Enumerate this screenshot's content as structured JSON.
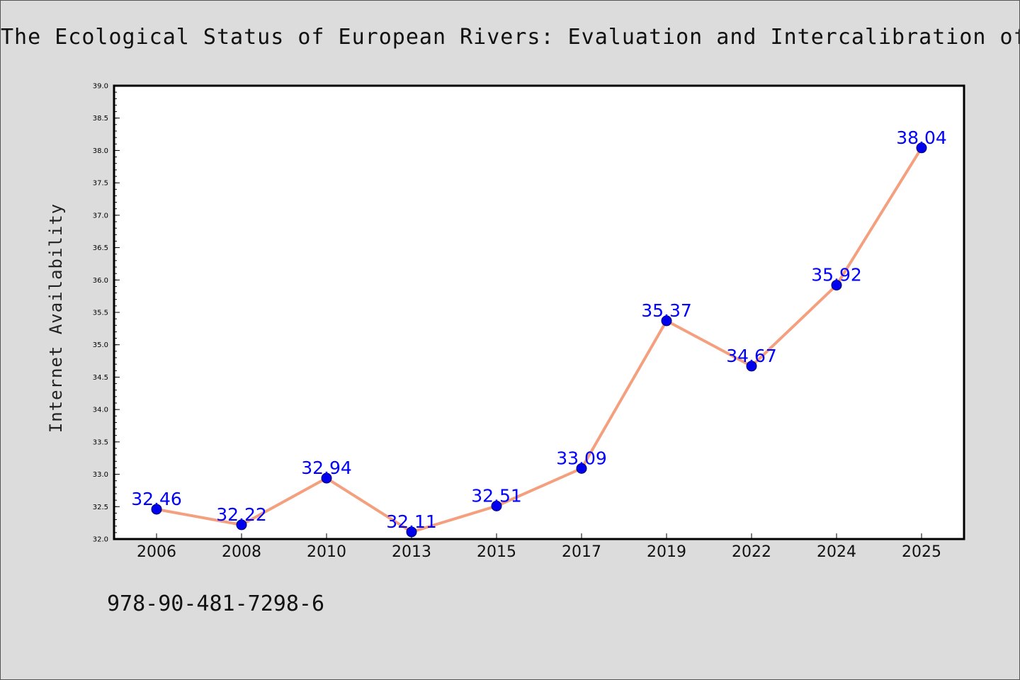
{
  "chart_title": "The Ecological Status of European Rivers: Evaluation and Intercalibration of Ass",
  "footer_code": "978-90-481-7298-6",
  "colors": {
    "background": "#dcdcdc",
    "plot_background": "#ffffff",
    "line": "#f4a07f",
    "marker": "#0000ee",
    "data_label": "#0000ff",
    "axis": "#000000"
  },
  "chart_data": {
    "type": "line",
    "title": "The Ecological Status of European Rivers: Evaluation and Intercalibration of Ass",
    "xlabel": "",
    "ylabel": "Internet Availability",
    "categories": [
      "2006",
      "2008",
      "2010",
      "2013",
      "2015",
      "2017",
      "2019",
      "2022",
      "2024",
      "2025"
    ],
    "series": [
      {
        "values": [
          32.46,
          32.22,
          32.94,
          32.11,
          32.51,
          33.09,
          35.37,
          34.67,
          35.92,
          38.04
        ]
      }
    ],
    "data_labels": [
      "32.46",
      "32.22",
      "32.94",
      "32.11",
      "32.51",
      "33.09",
      "35.37",
      "34.67",
      "35.92",
      "38.04"
    ],
    "ylim": [
      32.0,
      39.0
    ],
    "yticks": [
      "32.0",
      "32.5",
      "33.0",
      "33.5",
      "34.0",
      "34.5",
      "35.0",
      "35.5",
      "36.0",
      "36.5",
      "37.0",
      "37.5",
      "38.0",
      "38.5",
      "39.0"
    ],
    "grid": false,
    "legend": "none"
  }
}
